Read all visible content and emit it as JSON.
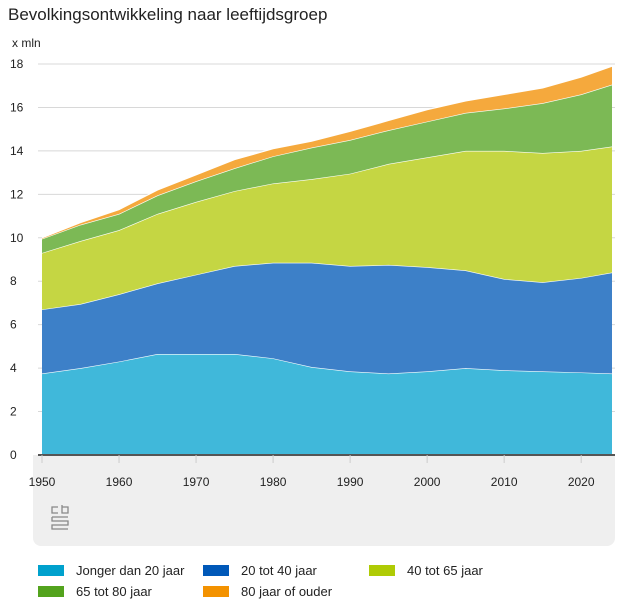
{
  "chart_data": {
    "type": "area",
    "stacked": true,
    "title": "Bevolkingsontwikkeling naar leeftijdsgroep",
    "ylabel": "x mln",
    "ylim": [
      0,
      18
    ],
    "yticks": [
      0,
      2,
      4,
      6,
      8,
      10,
      12,
      14,
      16,
      18
    ],
    "xlim": [
      1950,
      2024
    ],
    "xticks": [
      1950,
      1960,
      1970,
      1980,
      1990,
      2000,
      2010,
      2020
    ],
    "grid": true,
    "legend_position": "bottom",
    "x": [
      1950,
      1955,
      1960,
      1965,
      1970,
      1975,
      1980,
      1985,
      1990,
      1995,
      2000,
      2005,
      2010,
      2015,
      2020,
      2024
    ],
    "series": [
      {
        "name": "Jonger dan 20 jaar",
        "color": "#40b8da",
        "legend_color": "#00a1cd",
        "values": [
          3.75,
          4.0,
          4.3,
          4.65,
          4.65,
          4.65,
          4.45,
          4.05,
          3.85,
          3.75,
          3.85,
          4.0,
          3.9,
          3.85,
          3.8,
          3.75
        ]
      },
      {
        "name": "20 tot 40 jaar",
        "color": "#3d80c8",
        "legend_color": "#0058b8",
        "values": [
          2.95,
          2.95,
          3.1,
          3.25,
          3.65,
          4.05,
          4.4,
          4.8,
          4.85,
          5.0,
          4.8,
          4.5,
          4.2,
          4.1,
          4.35,
          4.65
        ]
      },
      {
        "name": "40 tot 65 jaar",
        "color": "#c5d643",
        "legend_color": "#afcb05",
        "values": [
          2.6,
          2.9,
          2.95,
          3.2,
          3.35,
          3.45,
          3.65,
          3.85,
          4.25,
          4.65,
          5.05,
          5.5,
          5.9,
          5.95,
          5.85,
          5.8
        ]
      },
      {
        "name": "65 tot 80 jaar",
        "color": "#7cb955",
        "legend_color": "#53a31d",
        "values": [
          0.65,
          0.75,
          0.75,
          0.85,
          0.95,
          1.05,
          1.25,
          1.45,
          1.55,
          1.55,
          1.65,
          1.75,
          1.95,
          2.3,
          2.6,
          2.85
        ]
      },
      {
        "name": "80 jaar of ouder",
        "color": "#f5a93d",
        "legend_color": "#f39200",
        "values": [
          0.05,
          0.1,
          0.2,
          0.25,
          0.3,
          0.4,
          0.35,
          0.3,
          0.4,
          0.45,
          0.55,
          0.55,
          0.65,
          0.7,
          0.8,
          0.85
        ]
      }
    ]
  },
  "logo": "cbs"
}
